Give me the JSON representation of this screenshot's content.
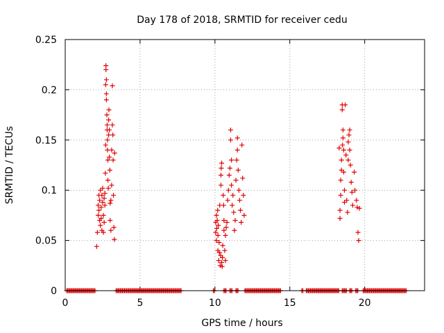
{
  "chart_data": {
    "type": "scatter",
    "title": "Day 178 of 2018, SRMTID for receiver cedu",
    "xlabel": "GPS time / hours",
    "ylabel": "SRMTID / TECUs",
    "xlim": [
      0,
      24
    ],
    "ylim": [
      0,
      0.25
    ],
    "x_ticks": [
      0,
      5,
      10,
      15,
      20
    ],
    "x_tick_labels": [
      "0",
      "5",
      "10",
      "15",
      "20"
    ],
    "y_ticks": [
      0,
      0.05,
      0.1,
      0.15,
      0.2,
      0.25
    ],
    "y_tick_labels": [
      "0",
      "0.05",
      "0.1",
      "0.15",
      "0.2",
      "0.25"
    ],
    "grid": true,
    "marker": "+",
    "color": "#e00000",
    "series": [
      {
        "name": "SRMTID",
        "zero_segments": [
          [
            0.1,
            2.0
          ],
          [
            3.4,
            7.8
          ],
          [
            9.9,
            10.0
          ],
          [
            10.6,
            10.8
          ],
          [
            11.0,
            11.2
          ],
          [
            11.4,
            11.6
          ],
          [
            12.0,
            14.4
          ],
          [
            15.8,
            15.9
          ],
          [
            16.1,
            18.3
          ],
          [
            18.5,
            18.8
          ],
          [
            19.0,
            19.2
          ],
          [
            19.4,
            19.6
          ],
          [
            19.9,
            22.8
          ]
        ],
        "points": [
          [
            2.1,
            0.044
          ],
          [
            2.15,
            0.058
          ],
          [
            2.2,
            0.075
          ],
          [
            2.2,
            0.085
          ],
          [
            2.25,
            0.095
          ],
          [
            2.25,
            0.08
          ],
          [
            2.3,
            0.07
          ],
          [
            2.3,
            0.09
          ],
          [
            2.35,
            0.1
          ],
          [
            2.35,
            0.065
          ],
          [
            2.4,
            0.083
          ],
          [
            2.4,
            0.072
          ],
          [
            2.45,
            0.095
          ],
          [
            2.45,
            0.06
          ],
          [
            2.5,
            0.088
          ],
          [
            2.5,
            0.102
          ],
          [
            2.55,
            0.075
          ],
          [
            2.55,
            0.058
          ],
          [
            2.6,
            0.068
          ],
          [
            2.6,
            0.092
          ],
          [
            2.65,
            0.085
          ],
          [
            2.65,
            0.097
          ],
          [
            2.68,
            0.117
          ],
          [
            2.7,
            0.145
          ],
          [
            2.7,
            0.205
          ],
          [
            2.72,
            0.224
          ],
          [
            2.72,
            0.22
          ],
          [
            2.75,
            0.21
          ],
          [
            2.75,
            0.196
          ],
          [
            2.75,
            0.19
          ],
          [
            2.78,
            0.175
          ],
          [
            2.8,
            0.16
          ],
          [
            2.8,
            0.165
          ],
          [
            2.82,
            0.15
          ],
          [
            2.82,
            0.14
          ],
          [
            2.85,
            0.13
          ],
          [
            2.85,
            0.11
          ],
          [
            2.88,
            0.102
          ],
          [
            2.9,
            0.155
          ],
          [
            2.9,
            0.17
          ],
          [
            2.92,
            0.18
          ],
          [
            2.95,
            0.16
          ],
          [
            2.95,
            0.133
          ],
          [
            2.98,
            0.12
          ],
          [
            3.0,
            0.087
          ],
          [
            3.0,
            0.07
          ],
          [
            3.05,
            0.09
          ],
          [
            3.05,
            0.06
          ],
          [
            3.1,
            0.105
          ],
          [
            3.1,
            0.14
          ],
          [
            3.15,
            0.165
          ],
          [
            3.15,
            0.204
          ],
          [
            3.18,
            0.155
          ],
          [
            3.2,
            0.13
          ],
          [
            3.22,
            0.095
          ],
          [
            3.25,
            0.063
          ],
          [
            3.28,
            0.051
          ],
          [
            3.3,
            0.137
          ],
          [
            10.05,
            0.068
          ],
          [
            10.05,
            0.058
          ],
          [
            10.1,
            0.075
          ],
          [
            10.1,
            0.05
          ],
          [
            10.12,
            0.062
          ],
          [
            10.15,
            0.07
          ],
          [
            10.18,
            0.08
          ],
          [
            10.2,
            0.04
          ],
          [
            10.2,
            0.055
          ],
          [
            10.22,
            0.065
          ],
          [
            10.25,
            0.03
          ],
          [
            10.28,
            0.048
          ],
          [
            10.3,
            0.038
          ],
          [
            10.32,
            0.085
          ],
          [
            10.35,
            0.025
          ],
          [
            10.38,
            0.035
          ],
          [
            10.4,
            0.105
          ],
          [
            10.4,
            0.115
          ],
          [
            10.42,
            0.122
          ],
          [
            10.45,
            0.127
          ],
          [
            10.45,
            0.028
          ],
          [
            10.48,
            0.024
          ],
          [
            10.5,
            0.033
          ],
          [
            10.52,
            0.045
          ],
          [
            10.55,
            0.095
          ],
          [
            10.58,
            0.085
          ],
          [
            10.6,
            0.06
          ],
          [
            10.6,
            0.07
          ],
          [
            10.65,
            0.04
          ],
          [
            10.7,
            0.055
          ],
          [
            10.7,
            0.03
          ],
          [
            10.75,
            0.063
          ],
          [
            10.8,
            0.068
          ],
          [
            10.85,
            0.09
          ],
          [
            10.9,
            0.1
          ],
          [
            10.95,
            0.115
          ],
          [
            11.0,
            0.122
          ],
          [
            11.05,
            0.15
          ],
          [
            11.05,
            0.16
          ],
          [
            11.1,
            0.13
          ],
          [
            11.1,
            0.105
          ],
          [
            11.15,
            0.085
          ],
          [
            11.2,
            0.095
          ],
          [
            11.25,
            0.078
          ],
          [
            11.3,
            0.06
          ],
          [
            11.35,
            0.07
          ],
          [
            11.4,
            0.11
          ],
          [
            11.45,
            0.13
          ],
          [
            11.5,
            0.14
          ],
          [
            11.5,
            0.152
          ],
          [
            11.55,
            0.12
          ],
          [
            11.6,
            0.1
          ],
          [
            11.65,
            0.09
          ],
          [
            11.7,
            0.08
          ],
          [
            11.75,
            0.068
          ],
          [
            11.8,
            0.145
          ],
          [
            11.85,
            0.112
          ],
          [
            11.9,
            0.095
          ],
          [
            11.95,
            0.075
          ]
        ],
        "cluster_20": [
          [
            18.3,
            0.142
          ],
          [
            18.35,
            0.072
          ],
          [
            18.35,
            0.08
          ],
          [
            18.4,
            0.095
          ],
          [
            18.4,
            0.11
          ],
          [
            18.45,
            0.12
          ],
          [
            18.45,
            0.13
          ],
          [
            18.5,
            0.185
          ],
          [
            18.5,
            0.18
          ],
          [
            18.52,
            0.145
          ],
          [
            18.55,
            0.16
          ],
          [
            18.55,
            0.152
          ],
          [
            18.6,
            0.14
          ],
          [
            18.6,
            0.118
          ],
          [
            18.65,
            0.1
          ],
          [
            18.65,
            0.088
          ],
          [
            18.7,
            0.185
          ],
          [
            18.75,
            0.135
          ],
          [
            18.8,
            0.09
          ],
          [
            18.85,
            0.078
          ],
          [
            18.9,
            0.13
          ],
          [
            18.9,
            0.148
          ],
          [
            18.95,
            0.155
          ],
          [
            19.0,
            0.16
          ],
          [
            19.0,
            0.14
          ],
          [
            19.05,
            0.125
          ],
          [
            19.1,
            0.108
          ],
          [
            19.15,
            0.098
          ],
          [
            19.2,
            0.085
          ],
          [
            19.3,
            0.118
          ],
          [
            19.35,
            0.1
          ],
          [
            19.45,
            0.09
          ],
          [
            19.5,
            0.083
          ],
          [
            19.55,
            0.058
          ],
          [
            19.6,
            0.05
          ],
          [
            19.65,
            0.082
          ]
        ]
      }
    ]
  }
}
